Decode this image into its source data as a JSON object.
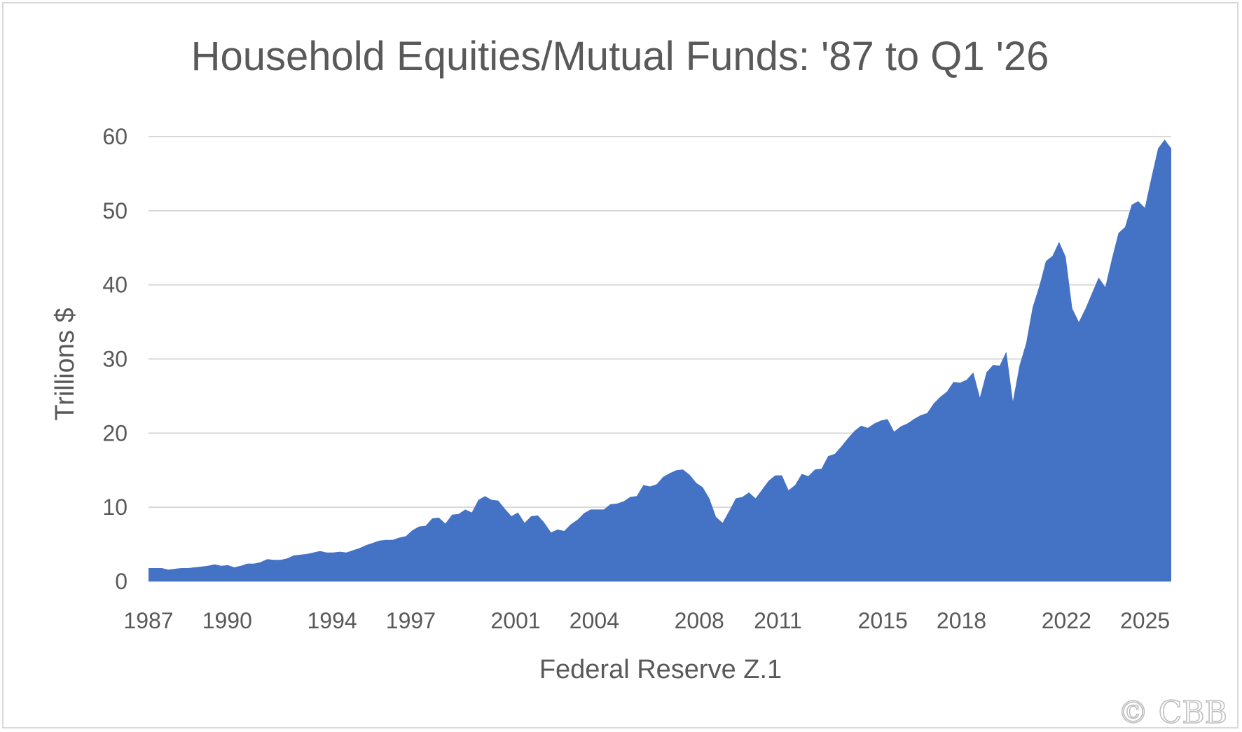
{
  "chart_data": {
    "type": "area",
    "title": "Household Equities/Mutual Funds: '87 to Q1 '26",
    "xlabel": "Federal Reserve Z.1",
    "ylabel": "Trillions $",
    "ylim": [
      0,
      60
    ],
    "yticks": [
      0,
      10,
      20,
      30,
      40,
      50,
      60
    ],
    "xticks": [
      "1987",
      "1990",
      "1994",
      "1997",
      "2001",
      "2004",
      "2008",
      "2011",
      "2015",
      "2018",
      "2022",
      "2025"
    ],
    "grid": true,
    "legend": "none",
    "color": "#4472c4",
    "x_start": 1987.0,
    "x_end": 2026.0,
    "values": [
      1.8,
      1.8,
      1.8,
      1.6,
      1.7,
      1.8,
      1.8,
      1.9,
      2.0,
      2.1,
      2.3,
      2.1,
      2.2,
      1.9,
      2.1,
      2.4,
      2.4,
      2.6,
      3.0,
      2.9,
      2.9,
      3.1,
      3.5,
      3.6,
      3.7,
      3.9,
      4.1,
      3.9,
      3.9,
      4.0,
      3.9,
      4.2,
      4.5,
      4.9,
      5.2,
      5.5,
      5.6,
      5.6,
      5.9,
      6.1,
      6.9,
      7.4,
      7.5,
      8.5,
      8.6,
      7.8,
      9.0,
      9.1,
      9.7,
      9.3,
      11.0,
      11.5,
      11.0,
      10.9,
      9.8,
      8.8,
      9.3,
      7.9,
      8.8,
      8.9,
      7.9,
      6.6,
      7.0,
      6.8,
      7.7,
      8.3,
      9.2,
      9.7,
      9.7,
      9.7,
      10.4,
      10.5,
      10.8,
      11.4,
      11.5,
      13.0,
      12.8,
      13.1,
      14.1,
      14.6,
      15.0,
      15.1,
      14.4,
      13.3,
      12.7,
      11.2,
      8.7,
      7.9,
      9.5,
      11.2,
      11.4,
      12.0,
      11.2,
      12.4,
      13.6,
      14.3,
      14.3,
      12.3,
      13.0,
      14.5,
      14.2,
      15.1,
      15.2,
      16.9,
      17.2,
      18.2,
      19.3,
      20.3,
      21.0,
      20.7,
      21.3,
      21.7,
      21.9,
      20.2,
      20.9,
      21.3,
      21.9,
      22.4,
      22.7,
      24.0,
      24.9,
      25.6,
      26.9,
      26.8,
      27.2,
      28.2,
      24.8,
      28.2,
      29.2,
      29.1,
      31.0,
      24.3,
      29.1,
      32.1,
      37.0,
      39.8,
      43.2,
      43.9,
      45.8,
      43.8,
      36.8,
      35.0,
      36.8,
      38.9,
      41.0,
      39.7,
      43.5,
      47.0,
      47.8,
      50.8,
      51.3,
      50.4,
      54.5,
      58.4,
      59.6,
      58.4
    ]
  },
  "watermark": "©  CBB"
}
